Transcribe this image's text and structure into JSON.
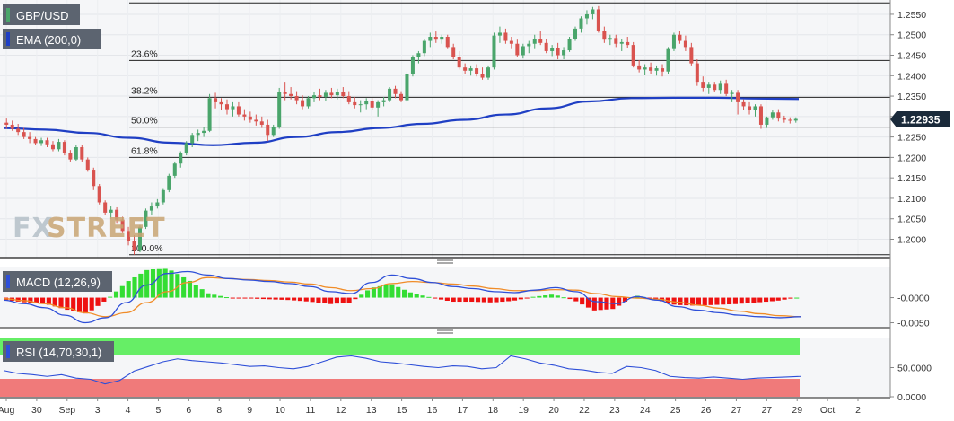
{
  "symbol_label": "GBP/USD",
  "ema_label": "EMA (200,0)",
  "macd_label": "MACD (12,26,9)",
  "rsi_label": "RSI (14,70,30,1)",
  "watermark": {
    "fx": "FX",
    "street": "STREET"
  },
  "last_price": "1.22935",
  "colors": {
    "up": "#4aa56b",
    "down": "#d9534f",
    "ema": "#1f3fc4",
    "macd_line": "#2e4fd8",
    "signal_line": "#f08c28",
    "hist_pos": "#33dd33",
    "hist_neg": "#ee1111",
    "rsi_line": "#2e4fd8",
    "rsi_upper": "#66ee66",
    "rsi_lower": "#f07a7a",
    "badge": "#5c6470",
    "price_tag": "#1a2a3a"
  },
  "chart_data": {
    "type": "candlestick",
    "price_axis": {
      "ticks": [
        "1.2550",
        "1.2500",
        "1.2450",
        "1.2400",
        "1.2350",
        "1.2300",
        "1.2250",
        "1.2200",
        "1.2150",
        "1.2100",
        "1.2050",
        "1.2000"
      ],
      "range": [
        1.1955,
        1.2585
      ]
    },
    "time_axis": {
      "labels": [
        "Aug",
        "30",
        "Sep",
        "3",
        "4",
        "5",
        "6",
        "8",
        "9",
        "10",
        "11",
        "12",
        "13",
        "15",
        "16",
        "17",
        "18",
        "19",
        "20",
        "22",
        "23",
        "24",
        "25",
        "26",
        "27",
        "27",
        "29",
        "Oct",
        "2"
      ]
    },
    "fibonacci": [
      {
        "label": "23.6%",
        "price": 1.2437
      },
      {
        "label": "38.2%",
        "price": 1.2347
      },
      {
        "label": "50.0%",
        "price": 1.2274
      },
      {
        "label": "61.8%",
        "price": 1.22
      },
      {
        "label": "100.0%",
        "price": 1.1962
      }
    ],
    "candles": [
      [
        1.2285,
        1.2295,
        1.227,
        1.228
      ],
      [
        1.228,
        1.229,
        1.2265,
        1.227
      ],
      [
        1.227,
        1.2282,
        1.2255,
        1.2262
      ],
      [
        1.2262,
        1.2272,
        1.2245,
        1.225
      ],
      [
        1.225,
        1.2262,
        1.2235,
        1.2245
      ],
      [
        1.2245,
        1.225,
        1.223,
        1.2235
      ],
      [
        1.2235,
        1.2248,
        1.2228,
        1.2242
      ],
      [
        1.2242,
        1.2248,
        1.2225,
        1.2232
      ],
      [
        1.2232,
        1.224,
        1.2215,
        1.222
      ],
      [
        1.222,
        1.2245,
        1.2215,
        1.2238
      ],
      [
        1.2238,
        1.2242,
        1.2205,
        1.221
      ],
      [
        1.221,
        1.2218,
        1.219,
        1.2195
      ],
      [
        1.2195,
        1.223,
        1.2192,
        1.2225
      ],
      [
        1.2225,
        1.223,
        1.219,
        1.2195
      ],
      [
        1.2195,
        1.22,
        1.2165,
        1.217
      ],
      [
        1.217,
        1.2175,
        1.212,
        1.213
      ],
      [
        1.213,
        1.2135,
        1.2085,
        1.209
      ],
      [
        1.209,
        1.2095,
        1.206,
        1.2065
      ],
      [
        1.2065,
        1.208,
        1.205,
        1.2072
      ],
      [
        1.2072,
        1.2078,
        1.204,
        1.2048
      ],
      [
        1.2048,
        1.2055,
        1.2015,
        1.202
      ],
      [
        1.202,
        1.203,
        1.1985,
        1.1995
      ],
      [
        1.1995,
        1.201,
        1.1962,
        1.1972
      ],
      [
        1.1972,
        1.2035,
        1.1968,
        1.203
      ],
      [
        1.203,
        1.2075,
        1.2025,
        1.207
      ],
      [
        1.207,
        1.209,
        1.2058,
        1.208
      ],
      [
        1.208,
        1.2098,
        1.2075,
        1.209
      ],
      [
        1.209,
        1.2125,
        1.2085,
        1.212
      ],
      [
        1.212,
        1.216,
        1.2115,
        1.2155
      ],
      [
        1.2155,
        1.219,
        1.215,
        1.2185
      ],
      [
        1.2185,
        1.2215,
        1.2175,
        1.221
      ],
      [
        1.221,
        1.224,
        1.2205,
        1.2235
      ],
      [
        1.2235,
        1.226,
        1.2225,
        1.2255
      ],
      [
        1.2255,
        1.2268,
        1.224,
        1.226
      ],
      [
        1.226,
        1.2275,
        1.225,
        1.2265
      ],
      [
        1.2265,
        1.2355,
        1.2262,
        1.2345
      ],
      [
        1.2345,
        1.2358,
        1.232,
        1.2335
      ],
      [
        1.2335,
        1.2345,
        1.2315,
        1.233
      ],
      [
        1.233,
        1.2342,
        1.2305,
        1.2318
      ],
      [
        1.2318,
        1.2335,
        1.23,
        1.2325
      ],
      [
        1.2325,
        1.2335,
        1.23,
        1.2305
      ],
      [
        1.2305,
        1.2318,
        1.229,
        1.23
      ],
      [
        1.23,
        1.2312,
        1.2285,
        1.2292
      ],
      [
        1.2292,
        1.2305,
        1.2278,
        1.2288
      ],
      [
        1.2288,
        1.23,
        1.2272,
        1.228
      ],
      [
        1.228,
        1.2292,
        1.224,
        1.2255
      ],
      [
        1.2255,
        1.228,
        1.225,
        1.2275
      ],
      [
        1.2275,
        1.237,
        1.227,
        1.236
      ],
      [
        1.236,
        1.2385,
        1.234,
        1.2355
      ],
      [
        1.2355,
        1.2372,
        1.2342,
        1.235
      ],
      [
        1.235,
        1.2362,
        1.233,
        1.234
      ],
      [
        1.234,
        1.2352,
        1.2318,
        1.2325
      ],
      [
        1.2325,
        1.235,
        1.232,
        1.2345
      ],
      [
        1.2345,
        1.236,
        1.2335,
        1.2352
      ],
      [
        1.2352,
        1.2368,
        1.234,
        1.2348
      ],
      [
        1.2348,
        1.2365,
        1.2338,
        1.2358
      ],
      [
        1.2358,
        1.237,
        1.2345,
        1.2352
      ],
      [
        1.2352,
        1.2368,
        1.2342,
        1.236
      ],
      [
        1.236,
        1.2372,
        1.2345,
        1.235
      ],
      [
        1.235,
        1.2362,
        1.233,
        1.2335
      ],
      [
        1.2335,
        1.2348,
        1.232,
        1.2328
      ],
      [
        1.2328,
        1.234,
        1.231,
        1.233
      ],
      [
        1.233,
        1.2345,
        1.2318,
        1.2338
      ],
      [
        1.2338,
        1.2345,
        1.2315,
        1.2322
      ],
      [
        1.2322,
        1.234,
        1.23,
        1.2335
      ],
      [
        1.2335,
        1.2348,
        1.2325,
        1.234
      ],
      [
        1.234,
        1.2372,
        1.2335,
        1.2368
      ],
      [
        1.2368,
        1.2375,
        1.2345,
        1.2355
      ],
      [
        1.2355,
        1.2362,
        1.2335,
        1.234
      ],
      [
        1.234,
        1.241,
        1.2335,
        1.2405
      ],
      [
        1.2405,
        1.245,
        1.2398,
        1.2445
      ],
      [
        1.2445,
        1.246,
        1.243,
        1.2455
      ],
      [
        1.2455,
        1.249,
        1.2448,
        1.2485
      ],
      [
        1.2485,
        1.2505,
        1.247,
        1.2495
      ],
      [
        1.2495,
        1.2508,
        1.248,
        1.2488
      ],
      [
        1.2488,
        1.25,
        1.2478,
        1.2495
      ],
      [
        1.2495,
        1.25,
        1.2465,
        1.247
      ],
      [
        1.247,
        1.2478,
        1.244,
        1.2445
      ],
      [
        1.2445,
        1.246,
        1.2415,
        1.242
      ],
      [
        1.242,
        1.243,
        1.2405,
        1.2412
      ],
      [
        1.2412,
        1.2425,
        1.24,
        1.2418
      ],
      [
        1.2418,
        1.2428,
        1.2398,
        1.2405
      ],
      [
        1.2405,
        1.242,
        1.239,
        1.2395
      ],
      [
        1.2395,
        1.2425,
        1.239,
        1.242
      ],
      [
        1.242,
        1.2505,
        1.2415,
        1.2498
      ],
      [
        1.2498,
        1.252,
        1.248,
        1.2505
      ],
      [
        1.2505,
        1.2515,
        1.2478,
        1.2485
      ],
      [
        1.2485,
        1.2495,
        1.2465,
        1.2478
      ],
      [
        1.2478,
        1.2488,
        1.2445,
        1.245
      ],
      [
        1.245,
        1.2478,
        1.2442,
        1.2472
      ],
      [
        1.2472,
        1.2485,
        1.2455,
        1.2478
      ],
      [
        1.2478,
        1.25,
        1.2465,
        1.249
      ],
      [
        1.249,
        1.251,
        1.2475,
        1.248
      ],
      [
        1.248,
        1.249,
        1.2455,
        1.246
      ],
      [
        1.246,
        1.2475,
        1.2448,
        1.2468
      ],
      [
        1.2468,
        1.248,
        1.244,
        1.245
      ],
      [
        1.245,
        1.247,
        1.244,
        1.2462
      ],
      [
        1.2462,
        1.2495,
        1.2458,
        1.249
      ],
      [
        1.249,
        1.252,
        1.2485,
        1.2515
      ],
      [
        1.2515,
        1.2545,
        1.2505,
        1.254
      ],
      [
        1.254,
        1.256,
        1.2525,
        1.255
      ],
      [
        1.255,
        1.2568,
        1.2538,
        1.2562
      ],
      [
        1.2562,
        1.257,
        1.2505,
        1.251
      ],
      [
        1.251,
        1.252,
        1.248,
        1.2488
      ],
      [
        1.2488,
        1.25,
        1.2475,
        1.2492
      ],
      [
        1.2492,
        1.25,
        1.247,
        1.2478
      ],
      [
        1.2478,
        1.249,
        1.246,
        1.2482
      ],
      [
        1.2482,
        1.2495,
        1.2468,
        1.2475
      ],
      [
        1.2475,
        1.2482,
        1.242,
        1.2425
      ],
      [
        1.2425,
        1.2438,
        1.2408,
        1.2415
      ],
      [
        1.2415,
        1.2428,
        1.2402,
        1.242
      ],
      [
        1.242,
        1.2432,
        1.2405,
        1.2412
      ],
      [
        1.2412,
        1.2425,
        1.24,
        1.2418
      ],
      [
        1.2418,
        1.2428,
        1.2398,
        1.241
      ],
      [
        1.241,
        1.247,
        1.2405,
        1.2465
      ],
      [
        1.2465,
        1.2505,
        1.246,
        1.25
      ],
      [
        1.25,
        1.251,
        1.2478,
        1.2485
      ],
      [
        1.2485,
        1.2498,
        1.246,
        1.247
      ],
      [
        1.247,
        1.248,
        1.2425,
        1.243
      ],
      [
        1.243,
        1.244,
        1.2375,
        1.2385
      ],
      [
        1.2385,
        1.2398,
        1.2362,
        1.237
      ],
      [
        1.237,
        1.2385,
        1.2355,
        1.2378
      ],
      [
        1.2378,
        1.2385,
        1.236,
        1.2365
      ],
      [
        1.2365,
        1.2388,
        1.2355,
        1.238
      ],
      [
        1.238,
        1.239,
        1.235,
        1.2355
      ],
      [
        1.2355,
        1.2365,
        1.2335,
        1.2358
      ],
      [
        1.2358,
        1.2365,
        1.2305,
        1.2335
      ],
      [
        1.2335,
        1.2342,
        1.2315,
        1.2325
      ],
      [
        1.2325,
        1.2335,
        1.2305,
        1.2315
      ],
      [
        1.2315,
        1.233,
        1.23,
        1.2325
      ],
      [
        1.2325,
        1.233,
        1.227,
        1.228
      ],
      [
        1.228,
        1.23,
        1.2272,
        1.2298
      ],
      [
        1.2298,
        1.2315,
        1.2292,
        1.231
      ],
      [
        1.231,
        1.2318,
        1.2288,
        1.2295
      ],
      [
        1.2295,
        1.2302,
        1.2285,
        1.2292
      ],
      [
        1.2292,
        1.2298,
        1.2283,
        1.229
      ],
      [
        1.229,
        1.2298,
        1.2285,
        1.2294
      ]
    ],
    "ema200": [
      1.2272,
      1.2268,
      1.226,
      1.2248,
      1.2236,
      1.223,
      1.2236,
      1.225,
      1.2262,
      1.2272,
      1.2282,
      1.2292,
      1.2305,
      1.232,
      1.2337,
      1.2345,
      1.2346,
      1.2346,
      1.2344,
      1.2343
    ],
    "macd": {
      "axis_ticks": [
        "-0.0000",
        "-0.0050"
      ],
      "macd_line": [
        -0.0005,
        -0.0012,
        -0.002,
        -0.0035,
        -0.005,
        -0.004,
        -0.001,
        0.0025,
        0.0048,
        0.0052,
        0.0045,
        0.0038,
        0.0035,
        0.0032,
        0.0028,
        0.0022,
        0.0012,
        0.0008,
        0.003,
        0.0045,
        0.0038,
        0.003,
        0.0022,
        0.0018,
        0.0012,
        0.001,
        0.0015,
        0.002,
        0.0012,
        -0.0008,
        -0.0012,
        0.0002,
        -0.0005,
        -0.0018,
        -0.0025,
        -0.003,
        -0.0035,
        -0.0038,
        -0.004,
        -0.0038
      ],
      "signal_line": [
        -0.0002,
        -0.0006,
        -0.0012,
        -0.002,
        -0.003,
        -0.0038,
        -0.003,
        -0.001,
        0.0012,
        0.003,
        0.004,
        0.0038,
        0.0036,
        0.0034,
        0.0031,
        0.0027,
        0.002,
        0.0014,
        0.0018,
        0.0028,
        0.0032,
        0.003,
        0.0027,
        0.0023,
        0.0018,
        0.0014,
        0.0014,
        0.0016,
        0.0015,
        0.0008,
        0.0002,
        -0.0001,
        -0.0003,
        -0.0009,
        -0.0015,
        -0.0021,
        -0.0027,
        -0.0032,
        -0.0036,
        -0.0038
      ]
    },
    "rsi": {
      "axis_ticks": [
        "50.0000",
        "0.0000"
      ],
      "upper_level": 70,
      "lower_level": 30,
      "values": [
        45,
        40,
        38,
        35,
        38,
        32,
        30,
        22,
        28,
        44,
        52,
        60,
        65,
        62,
        60,
        58,
        55,
        52,
        53,
        50,
        48,
        52,
        60,
        68,
        70,
        66,
        60,
        58,
        55,
        52,
        50,
        53,
        52,
        48,
        50,
        70,
        65,
        58,
        54,
        48,
        46,
        42,
        40,
        52,
        50,
        45,
        35,
        33,
        32,
        34,
        32,
        30,
        32,
        33,
        34,
        35
      ]
    }
  }
}
